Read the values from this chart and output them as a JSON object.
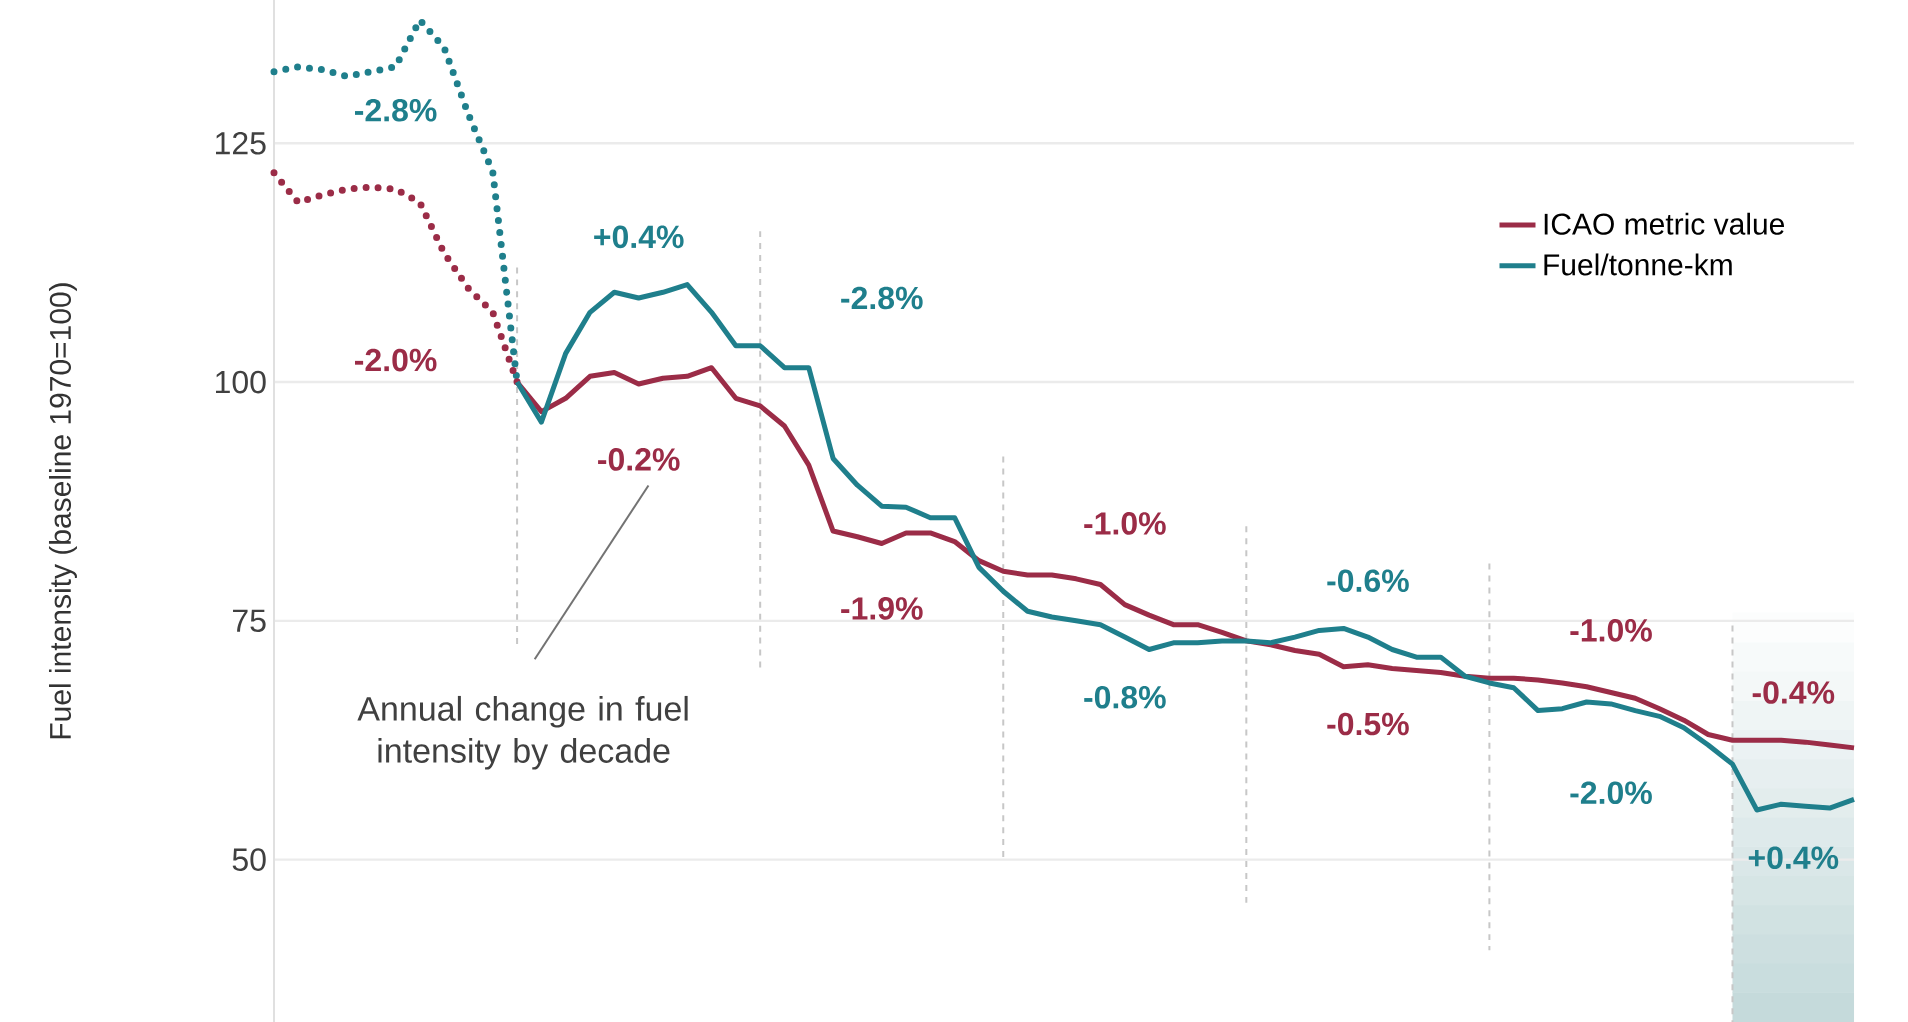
{
  "chart_data": {
    "type": "line",
    "ylabel": "Fuel intensity (baseline 1970=100)",
    "categories": [
      null,
      null,
      null,
      null,
      null,
      null,
      null,
      null,
      null,
      null,
      null,
      null,
      null,
      null,
      null,
      null,
      null,
      null,
      null,
      null,
      null,
      null,
      null,
      null,
      null,
      null,
      null,
      null,
      null,
      null,
      null,
      null,
      null,
      null,
      null,
      null,
      null,
      null,
      null,
      null,
      null,
      null,
      null,
      null,
      null,
      null,
      null,
      null,
      null,
      null,
      null,
      null,
      null,
      null,
      null,
      null,
      null,
      null,
      null,
      null,
      null,
      null,
      null,
      null,
      null,
      null
    ],
    "ylim": [
      33,
      140
    ],
    "yticks": [
      50,
      75,
      100,
      125
    ],
    "tick_labels": "y",
    "grid": "y",
    "legend": "top right",
    "series": [
      {
        "color": "#1f7f8c",
        "line_style": "dotted",
        "values": [
          132.5,
          133,
          132.7,
          132,
          132.5,
          133,
          137.9,
          135,
          128,
          122,
          100,
          null,
          null,
          null,
          null,
          null,
          null,
          null,
          null,
          null,
          null,
          null,
          null,
          null,
          null,
          null,
          null,
          null,
          null,
          null,
          null,
          null,
          null,
          null,
          null,
          null,
          null,
          null,
          null,
          null,
          null,
          null,
          null,
          null,
          null,
          null,
          null,
          null,
          null,
          null,
          null,
          null,
          null,
          null,
          null,
          null,
          null,
          null,
          null,
          null,
          null,
          null,
          null,
          null,
          null,
          null
        ]
      },
      {
        "color": "#9b2c47",
        "line_style": "dotted",
        "values": [
          121.9,
          118.8,
          119.6,
          120.2,
          120.4,
          120.2,
          118.8,
          113.5,
          109.8,
          107.3,
          100,
          null,
          null,
          null,
          null,
          null,
          null,
          null,
          null,
          null,
          null,
          null,
          null,
          null,
          null,
          null,
          null,
          null,
          null,
          null,
          null,
          null,
          null,
          null,
          null,
          null,
          null,
          null,
          null,
          null,
          null,
          null,
          null,
          null,
          null,
          null,
          null,
          null,
          null,
          null,
          null,
          null,
          null,
          null,
          null,
          null,
          null,
          null,
          null,
          null,
          null,
          null,
          null,
          null,
          null,
          null
        ]
      },
      {
        "name": "ICAO metric value",
        "color": "#9b2c47",
        "line_style": "solid",
        "values": [
          null,
          null,
          null,
          null,
          null,
          null,
          null,
          null,
          null,
          null,
          100,
          96.9,
          98.3,
          100.6,
          101,
          99.8,
          100.4,
          100.6,
          101.5,
          98.3,
          97.5,
          95.4,
          91.3,
          84.4,
          83.8,
          83.1,
          84.2,
          84.2,
          83.3,
          81.3,
          80.2,
          79.8,
          79.8,
          79.4,
          78.8,
          76.7,
          75.6,
          74.6,
          74.6,
          73.8,
          72.9,
          72.5,
          71.9,
          71.5,
          70.2,
          70.4,
          70,
          69.8,
          69.6,
          69.2,
          69,
          69,
          68.8,
          68.5,
          68.1,
          67.5,
          66.9,
          65.8,
          64.6,
          63.1,
          62.5,
          62.5,
          62.5,
          62.3,
          62,
          61.7
        ]
      },
      {
        "name": "Fuel/tonne-km",
        "color": "#1f7f8c",
        "line_style": "solid",
        "values": [
          null,
          null,
          null,
          null,
          null,
          null,
          null,
          null,
          null,
          null,
          100,
          95.8,
          103,
          107.3,
          109.4,
          108.8,
          109.4,
          110.2,
          107.3,
          103.8,
          103.8,
          101.5,
          101.5,
          92,
          89.2,
          87,
          86.9,
          85.8,
          85.8,
          80.6,
          78.1,
          76,
          75.4,
          75,
          74.6,
          73.3,
          72,
          72.7,
          72.7,
          72.9,
          72.9,
          72.7,
          73.3,
          74,
          74.2,
          73.3,
          72,
          71.2,
          71.2,
          69.2,
          68.5,
          68,
          65.6,
          65.8,
          66.5,
          66.3,
          65.6,
          65,
          63.8,
          62,
          60,
          55.2,
          55.8,
          55.6,
          55.4,
          56.3
        ]
      }
    ],
    "annotations": [
      "-2.8%",
      "-2.0%",
      "+0.4%",
      "-0.2%",
      "-2.8%",
      "-1.9%",
      "-1.0%",
      "-0.8%",
      "-0.6%",
      "-0.5%",
      "-1.0%",
      "-2.0%",
      "-0.4%",
      "+0.4%",
      "Annual change in fuel intensity by decade"
    ]
  }
}
